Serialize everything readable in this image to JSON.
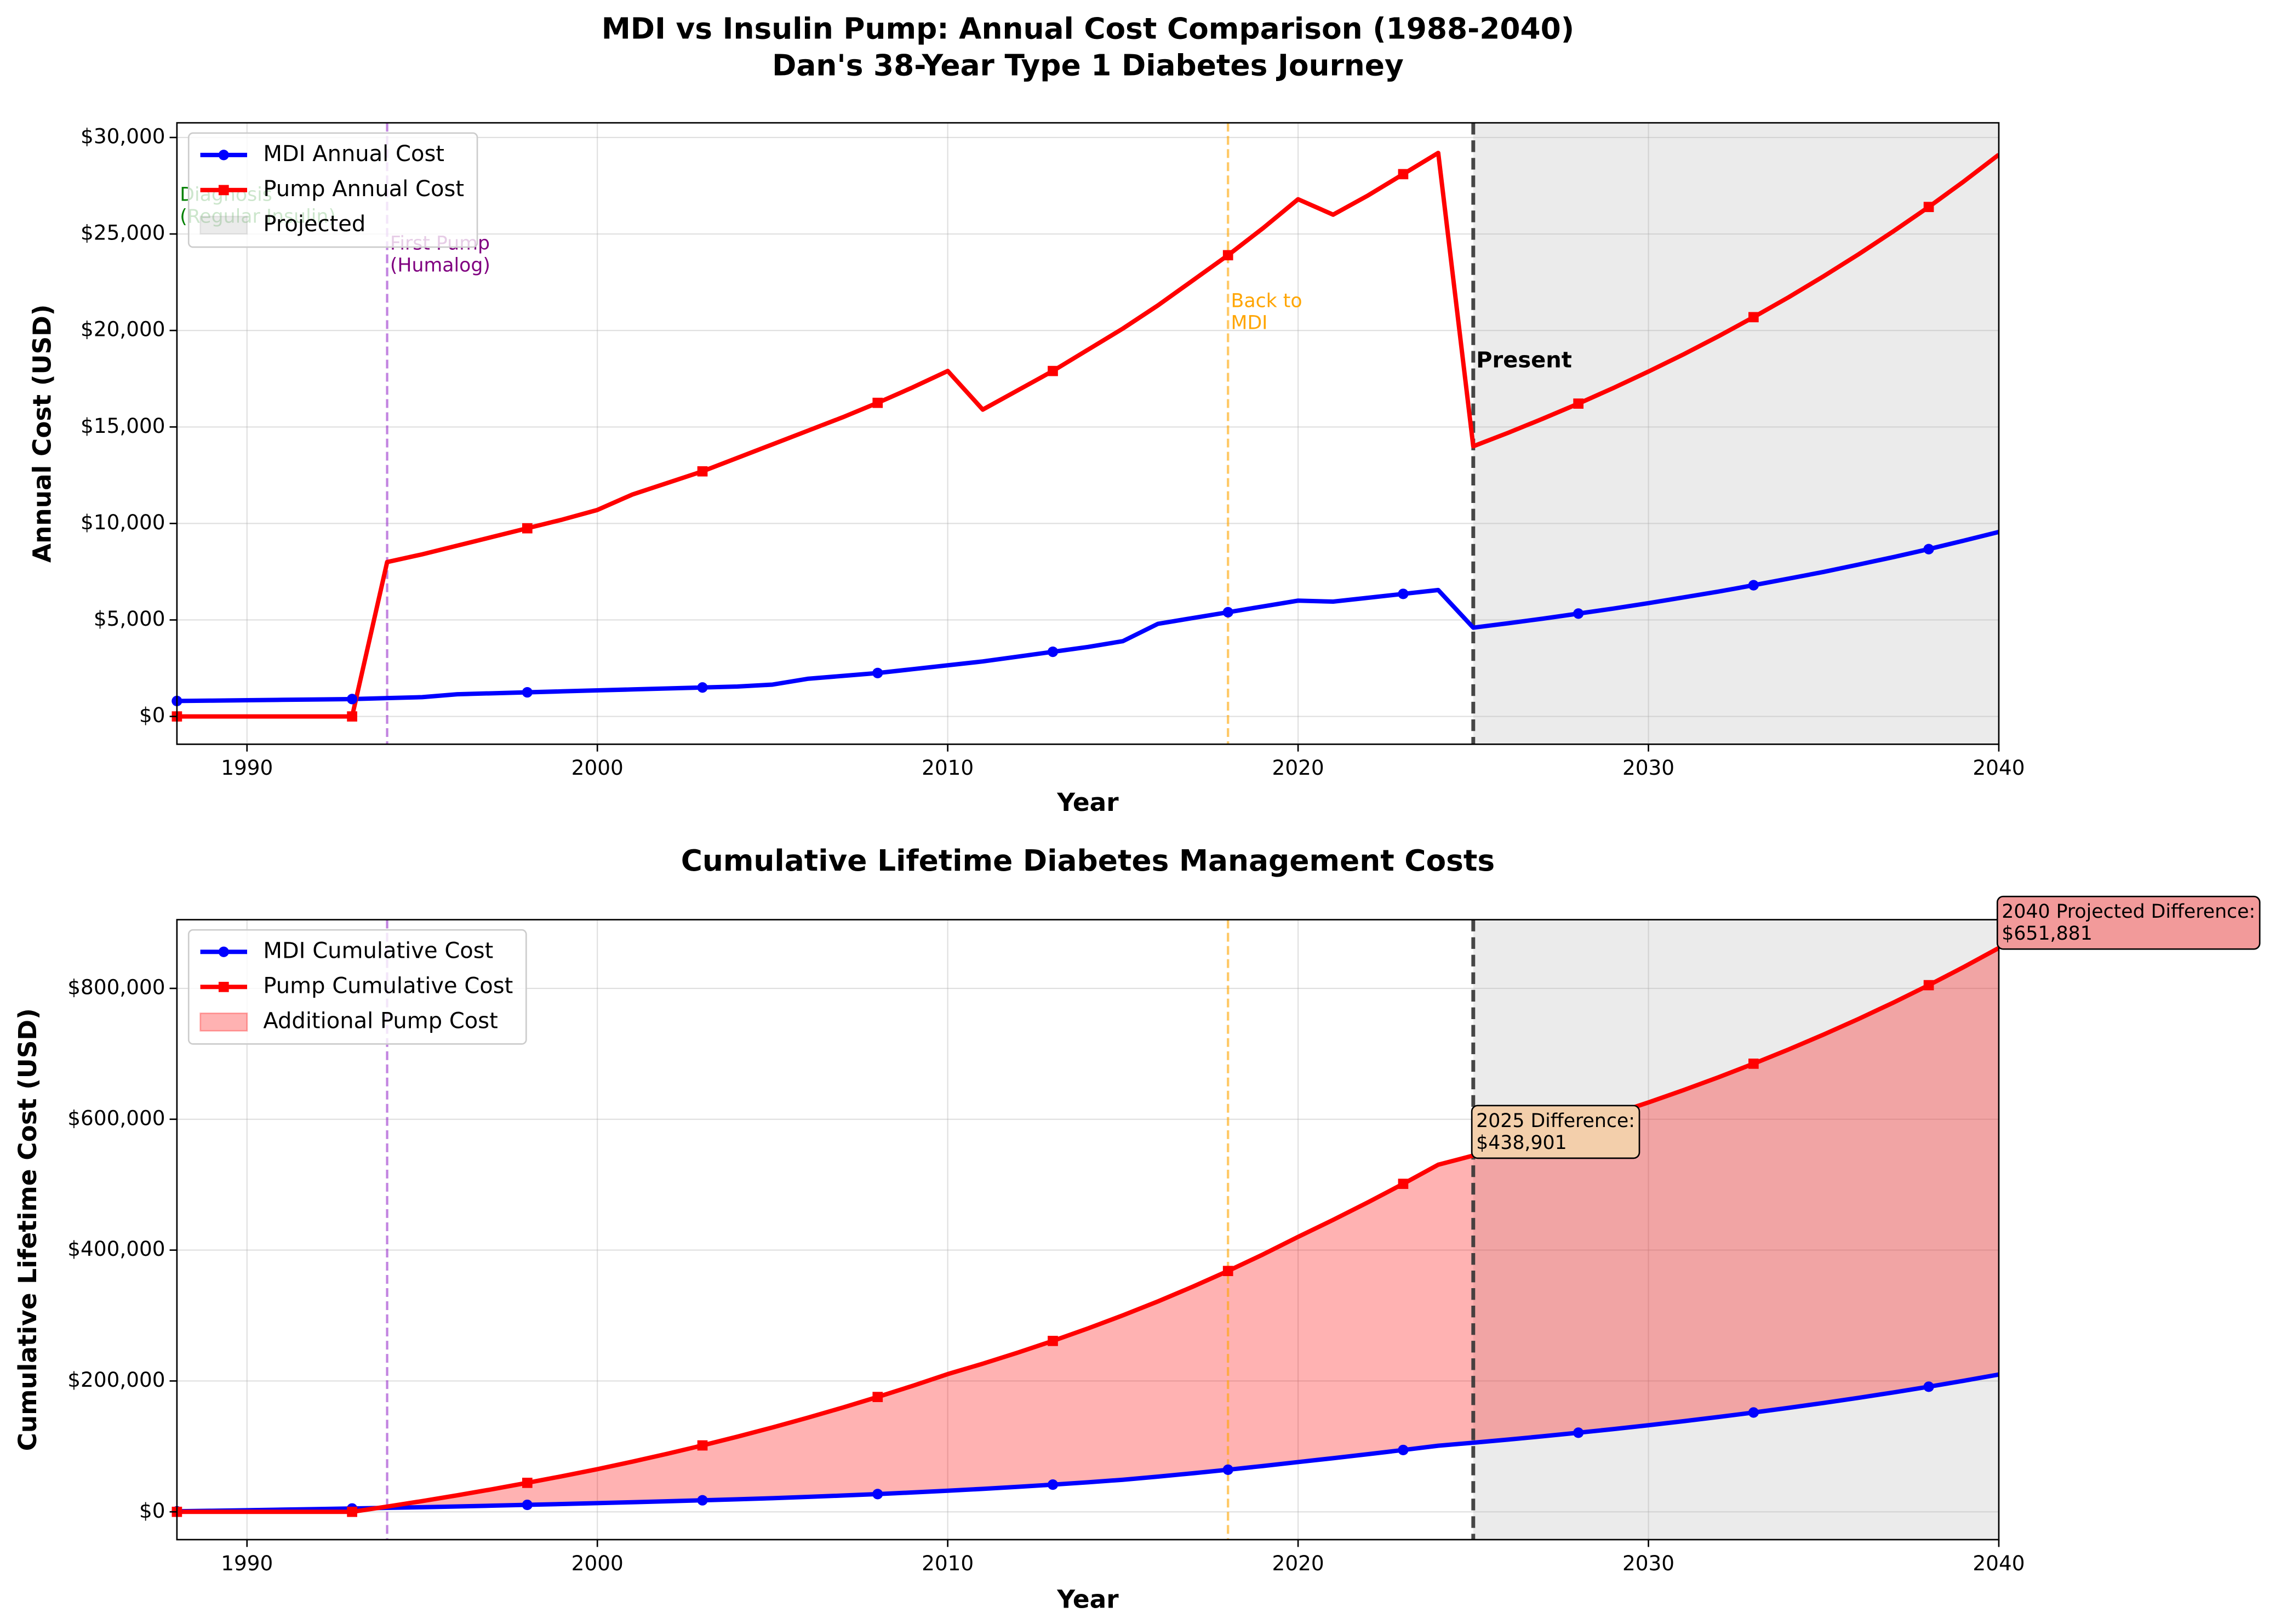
{
  "chart_data": [
    {
      "type": "line",
      "title": "MDI vs Insulin Pump: Annual Cost Comparison (1988-2040)",
      "subtitle": "Dan's 38-Year Type 1 Diabetes Journey",
      "xlabel": "Year",
      "ylabel": "Annual Cost (USD)",
      "x": [
        1988,
        1989,
        1990,
        1991,
        1992,
        1993,
        1994,
        1995,
        1996,
        1997,
        1998,
        1999,
        2000,
        2001,
        2002,
        2003,
        2004,
        2005,
        2006,
        2007,
        2008,
        2009,
        2010,
        2011,
        2012,
        2013,
        2014,
        2015,
        2016,
        2017,
        2018,
        2019,
        2020,
        2021,
        2022,
        2023,
        2024,
        2025,
        2026,
        2027,
        2028,
        2029,
        2030,
        2031,
        2032,
        2033,
        2034,
        2035,
        2036,
        2037,
        2038,
        2039,
        2040
      ],
      "series": [
        {
          "name": "MDI Annual Cost",
          "color": "#0000ff",
          "marker": "circle",
          "values": [
            800,
            820,
            840,
            860,
            880,
            900,
            950,
            1000,
            1150,
            1200,
            1250,
            1300,
            1350,
            1400,
            1450,
            1500,
            1550,
            1650,
            1950,
            2100,
            2250,
            2450,
            2650,
            2850,
            3100,
            3350,
            3600,
            3900,
            4800,
            5100,
            5400,
            5700,
            6000,
            5950,
            6150,
            6350,
            6550,
            4600,
            4830,
            5070,
            5330,
            5590,
            5870,
            6170,
            6470,
            6800,
            7140,
            7490,
            7870,
            8260,
            8670,
            9110,
            9560
          ]
        },
        {
          "name": "Pump Annual Cost",
          "color": "#ff0000",
          "marker": "square",
          "values": [
            0,
            0,
            0,
            0,
            0,
            0,
            8000,
            8400,
            8850,
            9300,
            9750,
            10200,
            10700,
            11500,
            12100,
            12700,
            13400,
            14100,
            14800,
            15500,
            16250,
            17050,
            17900,
            15900,
            16900,
            17900,
            19000,
            20100,
            21300,
            22600,
            23900,
            25300,
            26800,
            26000,
            27000,
            28100,
            29200,
            14000,
            14700,
            15440,
            16210,
            17020,
            17870,
            18760,
            19700,
            20690,
            21720,
            22810,
            23950,
            25150,
            26400,
            27720,
            29110
          ]
        }
      ],
      "markevery": 5,
      "shade": {
        "name": "Projected",
        "x": [
          2025,
          2040
        ],
        "color": "#808080"
      },
      "vlines": [
        {
          "x": 1994,
          "color": "#9932cc",
          "style": "dashed"
        },
        {
          "x": 2018,
          "color": "#ffa500",
          "style": "dashed"
        },
        {
          "x": 2025,
          "color": "#333333",
          "style": "bold-dashed"
        }
      ],
      "annotations": [
        {
          "x": 1988,
          "y": 27000,
          "color": "#008000",
          "lines": [
            "Diagnosis",
            "(Regular Insulin)"
          ]
        },
        {
          "x": 1994,
          "y": 24470,
          "color": "#800080",
          "lines": [
            "First Pump",
            "(Humalog)"
          ]
        },
        {
          "x": 2018,
          "y": 21500,
          "color": "#ffa500",
          "lines": [
            "Back to",
            "MDI"
          ]
        },
        {
          "x": 2025,
          "y": 18400,
          "color": "#000000",
          "bold": true,
          "lines": [
            "Present"
          ]
        }
      ],
      "xlim": [
        1988,
        2040
      ],
      "xticks": [
        1990,
        2000,
        2010,
        2020,
        2030,
        2040
      ],
      "ylim": [
        -1440,
        30760
      ],
      "yticks": [
        {
          "value": 0,
          "label": "$0"
        },
        {
          "value": 5000,
          "label": "$5,000"
        },
        {
          "value": 10000,
          "label": "$10,000"
        },
        {
          "value": 15000,
          "label": "$15,000"
        },
        {
          "value": 20000,
          "label": "$20,000"
        },
        {
          "value": 25000,
          "label": "$25,000"
        },
        {
          "value": 30000,
          "label": "$30,000"
        }
      ],
      "grid": true,
      "legend": "upper left"
    },
    {
      "type": "line",
      "title": "Cumulative Lifetime Diabetes Management Costs",
      "xlabel": "Year",
      "ylabel": "Cumulative Lifetime Cost (USD)",
      "x": [
        1988,
        1989,
        1990,
        1991,
        1992,
        1993,
        1994,
        1995,
        1996,
        1997,
        1998,
        1999,
        2000,
        2001,
        2002,
        2003,
        2004,
        2005,
        2006,
        2007,
        2008,
        2009,
        2010,
        2011,
        2012,
        2013,
        2014,
        2015,
        2016,
        2017,
        2018,
        2019,
        2020,
        2021,
        2022,
        2023,
        2024,
        2025,
        2026,
        2027,
        2028,
        2029,
        2030,
        2031,
        2032,
        2033,
        2034,
        2035,
        2036,
        2037,
        2038,
        2039,
        2040
      ],
      "series": [
        {
          "name": "MDI Cumulative Cost",
          "color": "#0000ff",
          "marker": "circle",
          "values": [
            800,
            1620,
            2460,
            3320,
            4200,
            5100,
            6050,
            7050,
            8200,
            9400,
            10650,
            11950,
            13300,
            14700,
            16150,
            17650,
            19200,
            20850,
            22800,
            24900,
            27150,
            29600,
            32250,
            35100,
            38200,
            41550,
            45150,
            49050,
            53850,
            58950,
            64350,
            70050,
            76050,
            82000,
            88150,
            94500,
            101050,
            105650,
            110480,
            115550,
            120880,
            126470,
            132340,
            138510,
            144980,
            151780,
            158920,
            166410,
            174280,
            182540,
            191210,
            200320,
            209880
          ]
        },
        {
          "name": "Pump Cumulative Cost",
          "color": "#ff0000",
          "marker": "square",
          "values": [
            0,
            0,
            0,
            0,
            0,
            0,
            8000,
            16400,
            25250,
            34550,
            44300,
            54500,
            65200,
            76700,
            88800,
            101500,
            114900,
            129000,
            143800,
            159300,
            175550,
            192600,
            210500,
            226400,
            243300,
            261200,
            280200,
            300300,
            321600,
            344200,
            368100,
            393400,
            420200,
            446200,
            473200,
            501300,
            530500,
            544500,
            559200,
            574640,
            590850,
            607870,
            625740,
            644500,
            664200,
            684890,
            706610,
            729420,
            753370,
            778520,
            804920,
            832640,
            861750
          ]
        }
      ],
      "markevery": 5,
      "fill": {
        "name": "Additional Pump Cost",
        "color": "#ff0000"
      },
      "shade": {
        "x": [
          2025,
          2040
        ],
        "color": "#808080"
      },
      "vlines": [
        {
          "x": 1994,
          "color": "#9932cc",
          "style": "dashed"
        },
        {
          "x": 2018,
          "color": "#ffa500",
          "style": "dashed"
        },
        {
          "x": 2025,
          "color": "#333333",
          "style": "bold-dashed"
        }
      ],
      "annotations": [
        {
          "x": 2025,
          "y": 596600,
          "color": "#000000",
          "box": "#f3cfab",
          "lines": [
            "2025 Difference:",
            "$438,901"
          ]
        },
        {
          "x": 2040,
          "y": 916200,
          "color": "#000000",
          "box": "#f29a9a",
          "lines": [
            "2040 Projected Difference:",
            "$651,881"
          ]
        }
      ],
      "xlim": [
        1988,
        2040
      ],
      "xticks": [
        1990,
        2000,
        2010,
        2020,
        2030,
        2040
      ],
      "ylim": [
        -42500,
        905000
      ],
      "yticks": [
        {
          "value": 0,
          "label": "$0"
        },
        {
          "value": 200000,
          "label": "$200,000"
        },
        {
          "value": 400000,
          "label": "$400,000"
        },
        {
          "value": 600000,
          "label": "$600,000"
        },
        {
          "value": 800000,
          "label": "$800,000"
        }
      ],
      "grid": true,
      "legend": "upper left"
    }
  ]
}
